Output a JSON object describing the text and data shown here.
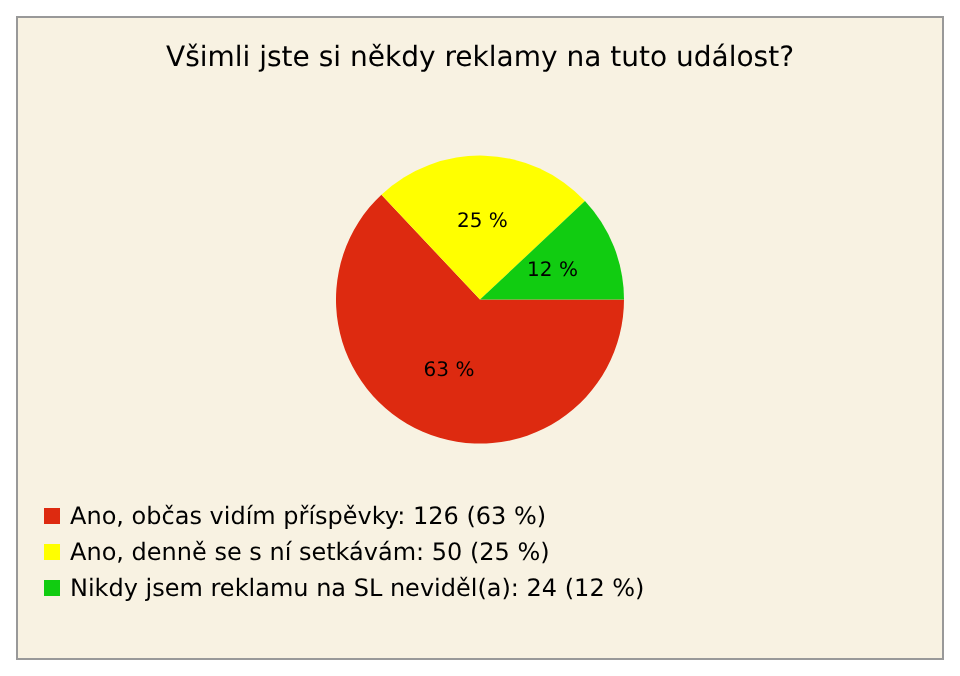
{
  "chart_data": {
    "type": "pie",
    "title": "Všimli jste si někdy reklamy na tuto událost?",
    "categories": [
      "Ano, občas vidím příspěvky: 126 (63 %)",
      "Ano, denně se s ní setkávám: 50 (25 %)",
      "Nikdy jsem reklamu na SL neviděl(a): 24 (12 %)"
    ],
    "values": [
      63,
      25,
      12
    ],
    "value_labels": [
      "63 %",
      "25 %",
      "12 %"
    ],
    "colors": [
      "#dd2a10",
      "#ffff00",
      "#11cc11"
    ],
    "legend": "bottom left"
  }
}
